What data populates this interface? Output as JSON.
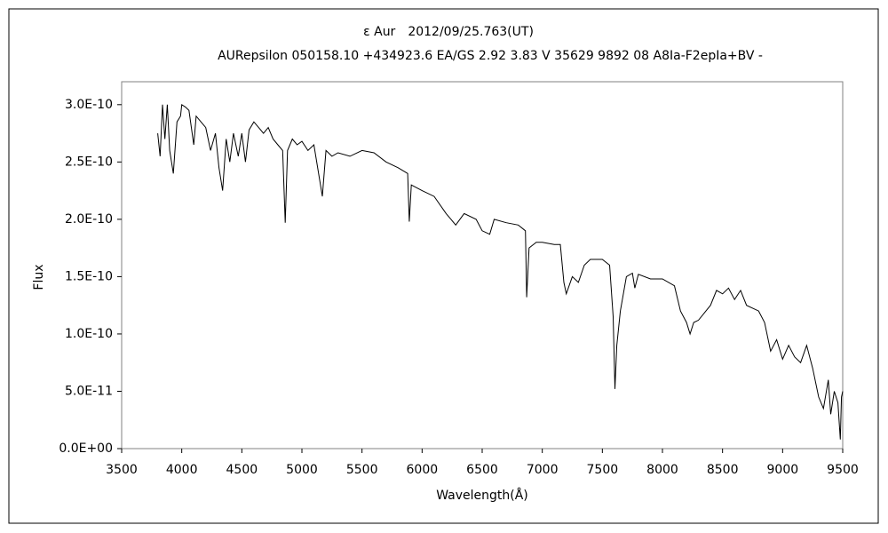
{
  "chart_data": {
    "type": "line",
    "title": "ε Aur　2012/09/25.763(UT)",
    "subtitle": "AURepsilon 050158.10 +434923.6 EA/GS 2.92 3.83 V 35629 9892 08 A8Ia-F2epIa+BV -",
    "x_label": "Wavelength(Å)",
    "y_label": "Flux",
    "color": "#000000",
    "x": [
      3800,
      3820,
      3840,
      3860,
      3880,
      3900,
      3930,
      3960,
      3990,
      4000,
      4030,
      4060,
      4100,
      4120,
      4160,
      4200,
      4240,
      4280,
      4310,
      4340,
      4370,
      4400,
      4430,
      4470,
      4500,
      4530,
      4560,
      4600,
      4640,
      4680,
      4720,
      4760,
      4800,
      4840,
      4861,
      4880,
      4920,
      4960,
      5000,
      5050,
      5100,
      5170,
      5200,
      5250,
      5300,
      5400,
      5500,
      5600,
      5700,
      5800,
      5880,
      5893,
      5910,
      6000,
      6100,
      6200,
      6280,
      6350,
      6450,
      6500,
      6563,
      6600,
      6700,
      6800,
      6860,
      6870,
      6890,
      6950,
      7000,
      7100,
      7150,
      7180,
      7200,
      7250,
      7300,
      7350,
      7400,
      7500,
      7560,
      7590,
      7605,
      7620,
      7650,
      7700,
      7750,
      7770,
      7800,
      7900,
      8000,
      8100,
      8150,
      8200,
      8230,
      8260,
      8300,
      8400,
      8450,
      8500,
      8550,
      8600,
      8650,
      8700,
      8800,
      8850,
      8900,
      8950,
      9000,
      9050,
      9100,
      9150,
      9200,
      9250,
      9300,
      9340,
      9380,
      9400,
      9430,
      9460,
      9480,
      9490,
      9500
    ],
    "values": [
      2.75e-10,
      2.55e-10,
      3e-10,
      2.7e-10,
      3e-10,
      2.6e-10,
      2.4e-10,
      2.85e-10,
      2.9e-10,
      3e-10,
      2.98e-10,
      2.95e-10,
      2.65e-10,
      2.9e-10,
      2.85e-10,
      2.8e-10,
      2.6e-10,
      2.75e-10,
      2.45e-10,
      2.25e-10,
      2.7e-10,
      2.5e-10,
      2.75e-10,
      2.55e-10,
      2.75e-10,
      2.5e-10,
      2.78e-10,
      2.85e-10,
      2.8e-10,
      2.75e-10,
      2.8e-10,
      2.7e-10,
      2.65e-10,
      2.6e-10,
      1.97e-10,
      2.6e-10,
      2.7e-10,
      2.65e-10,
      2.68e-10,
      2.6e-10,
      2.65e-10,
      2.2e-10,
      2.6e-10,
      2.55e-10,
      2.58e-10,
      2.55e-10,
      2.6e-10,
      2.58e-10,
      2.5e-10,
      2.45e-10,
      2.4e-10,
      1.98e-10,
      2.3e-10,
      2.25e-10,
      2.2e-10,
      2.05e-10,
      1.95e-10,
      2.05e-10,
      2e-10,
      1.9e-10,
      1.87e-10,
      2e-10,
      1.97e-10,
      1.95e-10,
      1.9e-10,
      1.32e-10,
      1.75e-10,
      1.8e-10,
      1.8e-10,
      1.78e-10,
      1.78e-10,
      1.45e-10,
      1.35e-10,
      1.5e-10,
      1.45e-10,
      1.6e-10,
      1.65e-10,
      1.65e-10,
      1.6e-10,
      1.15e-10,
      5.2e-11,
      9e-11,
      1.2e-10,
      1.5e-10,
      1.53e-10,
      1.4e-10,
      1.52e-10,
      1.48e-10,
      1.48e-10,
      1.42e-10,
      1.2e-10,
      1.1e-10,
      1e-10,
      1.1e-10,
      1.12e-10,
      1.25e-10,
      1.38e-10,
      1.35e-10,
      1.4e-10,
      1.3e-10,
      1.38e-10,
      1.25e-10,
      1.2e-10,
      1.1e-10,
      8.5e-11,
      9.5e-11,
      7.8e-11,
      9e-11,
      8e-11,
      7.5e-11,
      9e-11,
      7e-11,
      4.5e-11,
      3.5e-11,
      6e-11,
      3e-11,
      5e-11,
      4e-11,
      8e-12,
      4.5e-11,
      5e-11
    ],
    "xlim": [
      3500,
      9500
    ],
    "xticks": [
      3500,
      4000,
      4500,
      5000,
      5500,
      6000,
      6500,
      7000,
      7500,
      8000,
      8500,
      9000,
      9500
    ],
    "ylim": [
      0,
      3.2e-10
    ],
    "yticks": [
      {
        "value": 0,
        "label": "0.0E+00"
      },
      {
        "value": 5e-11,
        "label": "5.0E-11"
      },
      {
        "value": 1e-10,
        "label": "1.0E-10"
      },
      {
        "value": 1.5e-10,
        "label": "1.5E-10"
      },
      {
        "value": 2e-10,
        "label": "2.0E-10"
      },
      {
        "value": 2.5e-10,
        "label": "2.5E-10"
      },
      {
        "value": 3e-10,
        "label": "3.0E-10"
      }
    ]
  }
}
